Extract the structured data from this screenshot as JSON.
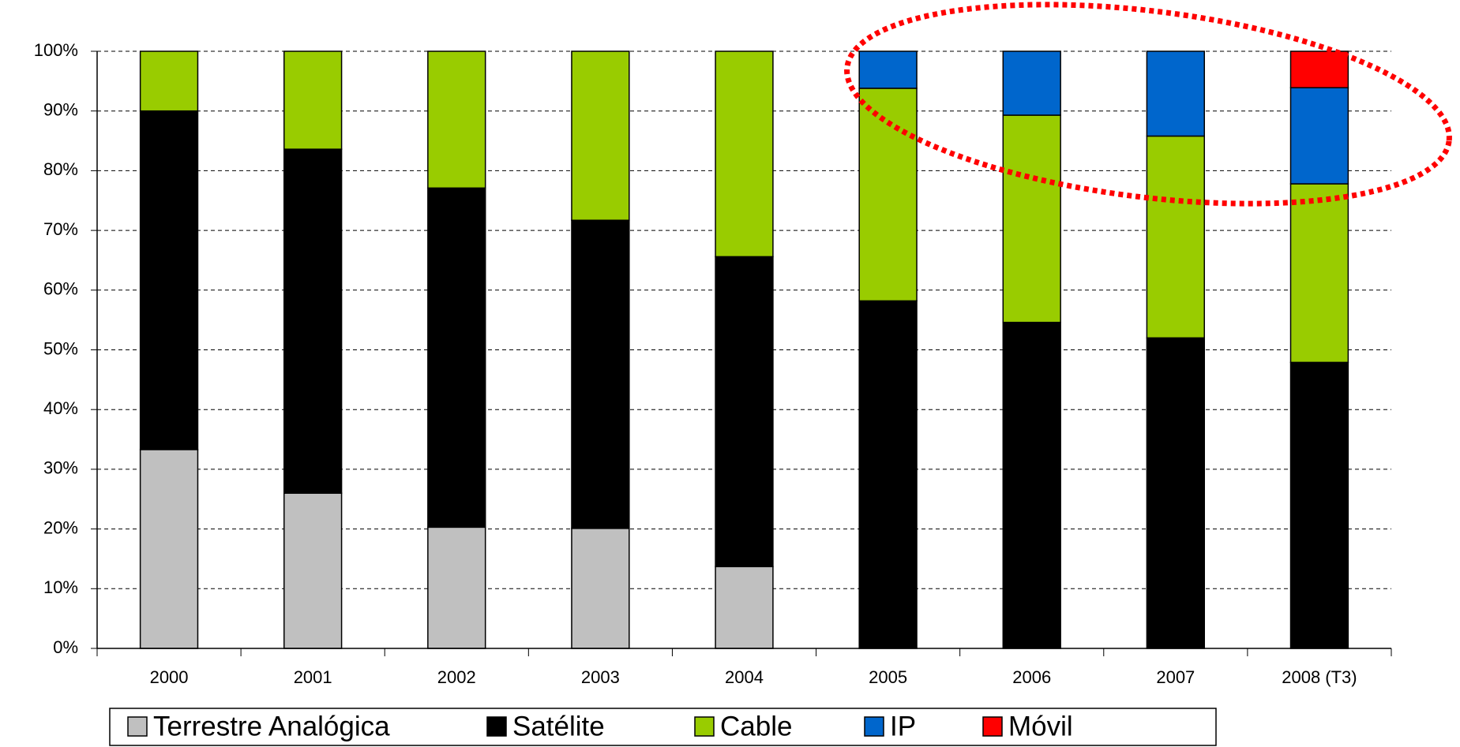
{
  "chart_data": {
    "type": "stacked_bar",
    "categories": [
      "2000",
      "2001",
      "2002",
      "2003",
      "2004",
      "2005",
      "2006",
      "2007",
      "2008 (T3)"
    ],
    "series": [
      {
        "name": "Terrestre Analógica",
        "color": "#c0c0c0",
        "values": [
          33.3,
          26,
          20.3,
          20.1,
          13.7,
          0,
          0,
          0,
          0
        ]
      },
      {
        "name": "Satélite",
        "color": "#000000",
        "values": [
          56.7,
          57.6,
          56.8,
          51.6,
          51.9,
          58.2,
          54.6,
          52,
          47.9
        ]
      },
      {
        "name": "Cable",
        "color": "#99cc00",
        "values": [
          10,
          16.4,
          22.9,
          28.3,
          34.4,
          35.6,
          34.7,
          33.8,
          29.9
        ]
      },
      {
        "name": "IP",
        "color": "#0066cc",
        "values": [
          0,
          0,
          0,
          0,
          0,
          6.2,
          10.7,
          14.2,
          16.1
        ]
      },
      {
        "name": "Móvil",
        "color": "#ff0000",
        "values": [
          0,
          0,
          0,
          0,
          0,
          0,
          0,
          0,
          6.1
        ]
      }
    ],
    "ylim": [
      0,
      100
    ],
    "yticks": [
      {
        "value": 0,
        "label": "0%"
      },
      {
        "value": 10,
        "label": "10%"
      },
      {
        "value": 20,
        "label": "20%"
      },
      {
        "value": 30,
        "label": "30%"
      },
      {
        "value": 40,
        "label": "40%"
      },
      {
        "value": 50,
        "label": "50%"
      },
      {
        "value": 60,
        "label": "60%"
      },
      {
        "value": 70,
        "label": "70%"
      },
      {
        "value": 80,
        "label": "80%"
      },
      {
        "value": 90,
        "label": "90%"
      },
      {
        "value": 100,
        "label": "100%"
      }
    ],
    "grid": true,
    "legend": "bottom"
  }
}
